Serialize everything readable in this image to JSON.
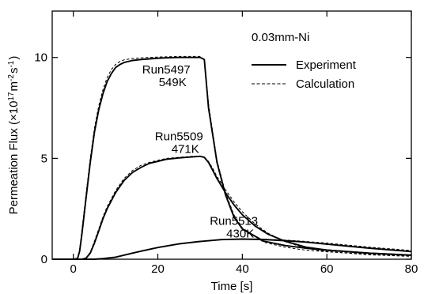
{
  "chart_data": {
    "type": "line",
    "title": "",
    "xlabel": "Time  [s]",
    "ylabel_parts": [
      "Permeation  Flux  (",
      "×",
      "10",
      "17",
      "m",
      "-2",
      "s",
      "-1",
      ")"
    ],
    "xlim": [
      -5,
      80
    ],
    "ylim": [
      0,
      12.3
    ],
    "xticks": [
      0,
      20,
      40,
      60,
      80
    ],
    "yticks": [
      0,
      5,
      10
    ],
    "xtick_labels": [
      "0",
      "20",
      "40",
      "60",
      "80"
    ],
    "ytick_labels": [
      "0",
      "5",
      "10"
    ],
    "legend": {
      "placement": "top-right",
      "header": "0.03mm-Ni",
      "entries": [
        {
          "label": "Experiment",
          "style": "solid"
        },
        {
          "label": "Calculation",
          "style": "dashed"
        }
      ]
    },
    "annotations": [
      {
        "line1": "Run5497",
        "line2": "549K",
        "x": 22,
        "y": 9.2
      },
      {
        "line1": "Run5509",
        "line2": "471K",
        "x": 25,
        "y": 5.9
      },
      {
        "line1": "Run5513",
        "line2": "430K",
        "x": 38,
        "y": 1.7
      }
    ],
    "series": [
      {
        "run": "Run5497",
        "temperature": "549K",
        "style": "solid",
        "x": [
          -5,
          0,
          1,
          1.5,
          2,
          3,
          4,
          5,
          6,
          7,
          8,
          9,
          10,
          11,
          12,
          14,
          16,
          18,
          20,
          22,
          25,
          28,
          30,
          31,
          32,
          34,
          36,
          38,
          40,
          45,
          50,
          55,
          60,
          70,
          80
        ],
        "y": [
          0,
          0,
          0.03,
          0.4,
          1.2,
          3.0,
          4.8,
          6.3,
          7.4,
          8.2,
          8.8,
          9.2,
          9.5,
          9.65,
          9.75,
          9.85,
          9.9,
          9.93,
          9.96,
          9.98,
          10.0,
          10.0,
          10.0,
          9.9,
          7.5,
          4.8,
          3.2,
          2.1,
          1.5,
          0.9,
          0.68,
          0.55,
          0.45,
          0.3,
          0.2
        ]
      },
      {
        "run": "Run5497",
        "temperature": "549K",
        "style": "dashed",
        "x": [
          -5,
          0,
          1,
          1.5,
          2,
          3,
          4,
          5,
          6,
          7,
          8,
          9,
          10,
          11,
          12,
          14,
          16,
          18,
          20,
          22,
          25,
          28,
          30,
          31,
          32,
          34,
          36,
          38,
          40,
          45,
          50,
          55,
          60,
          70,
          80
        ],
        "y": [
          0,
          0,
          0.03,
          0.5,
          1.4,
          3.2,
          5.0,
          6.5,
          7.6,
          8.4,
          9.0,
          9.4,
          9.65,
          9.8,
          9.88,
          9.95,
          9.98,
          10.0,
          10.02,
          10.03,
          10.05,
          10.05,
          10.05,
          9.9,
          7.7,
          4.9,
          3.3,
          2.2,
          1.55,
          0.85,
          0.6,
          0.45,
          0.37,
          0.25,
          0.16
        ]
      },
      {
        "run": "Run5509",
        "temperature": "471K",
        "style": "solid",
        "x": [
          -5,
          2,
          3,
          4,
          5,
          6,
          7,
          8,
          10,
          12,
          14,
          16,
          18,
          20,
          22,
          25,
          28,
          30,
          31,
          32,
          33,
          34,
          36,
          38,
          40,
          43,
          46,
          50,
          55,
          60,
          70,
          80
        ],
        "y": [
          0,
          0,
          0.05,
          0.3,
          0.8,
          1.4,
          2.0,
          2.5,
          3.3,
          3.9,
          4.3,
          4.55,
          4.75,
          4.85,
          4.95,
          5.02,
          5.07,
          5.1,
          5.05,
          4.8,
          4.4,
          4.0,
          3.3,
          2.7,
          2.2,
          1.65,
          1.25,
          0.9,
          0.6,
          0.45,
          0.3,
          0.2
        ]
      },
      {
        "run": "Run5509",
        "temperature": "471K",
        "style": "dashed",
        "x": [
          -5,
          2,
          3,
          4,
          5,
          6,
          7,
          8,
          10,
          12,
          14,
          16,
          18,
          20,
          22,
          25,
          28,
          30,
          31,
          32,
          33,
          34,
          36,
          38,
          40,
          43,
          46,
          50,
          55,
          60,
          70,
          80
        ],
        "y": [
          0,
          0,
          0.05,
          0.35,
          0.9,
          1.5,
          2.1,
          2.6,
          3.4,
          4.0,
          4.4,
          4.65,
          4.8,
          4.9,
          5.0,
          5.05,
          5.1,
          5.12,
          5.05,
          4.85,
          4.5,
          4.1,
          3.45,
          2.85,
          2.35,
          1.75,
          1.3,
          0.88,
          0.55,
          0.38,
          0.22,
          0.14
        ]
      },
      {
        "run": "Run5513",
        "temperature": "430K",
        "style": "solid",
        "x": [
          -5,
          5,
          7,
          10,
          13,
          16,
          20,
          25,
          30,
          35,
          40,
          45,
          50,
          55,
          60,
          70,
          80
        ],
        "y": [
          0,
          0,
          0.03,
          0.1,
          0.25,
          0.4,
          0.58,
          0.76,
          0.88,
          0.97,
          1.0,
          0.98,
          0.92,
          0.85,
          0.75,
          0.55,
          0.38
        ]
      },
      {
        "run": "Run5513",
        "temperature": "430K",
        "style": "dashed",
        "x": [
          -5,
          5,
          7,
          10,
          13,
          16,
          20,
          25,
          30,
          35,
          40,
          45,
          50,
          55,
          60,
          70,
          80
        ],
        "y": [
          0,
          0,
          0.03,
          0.1,
          0.24,
          0.39,
          0.57,
          0.75,
          0.87,
          0.96,
          1.0,
          0.99,
          0.95,
          0.88,
          0.8,
          0.6,
          0.43
        ]
      }
    ]
  }
}
